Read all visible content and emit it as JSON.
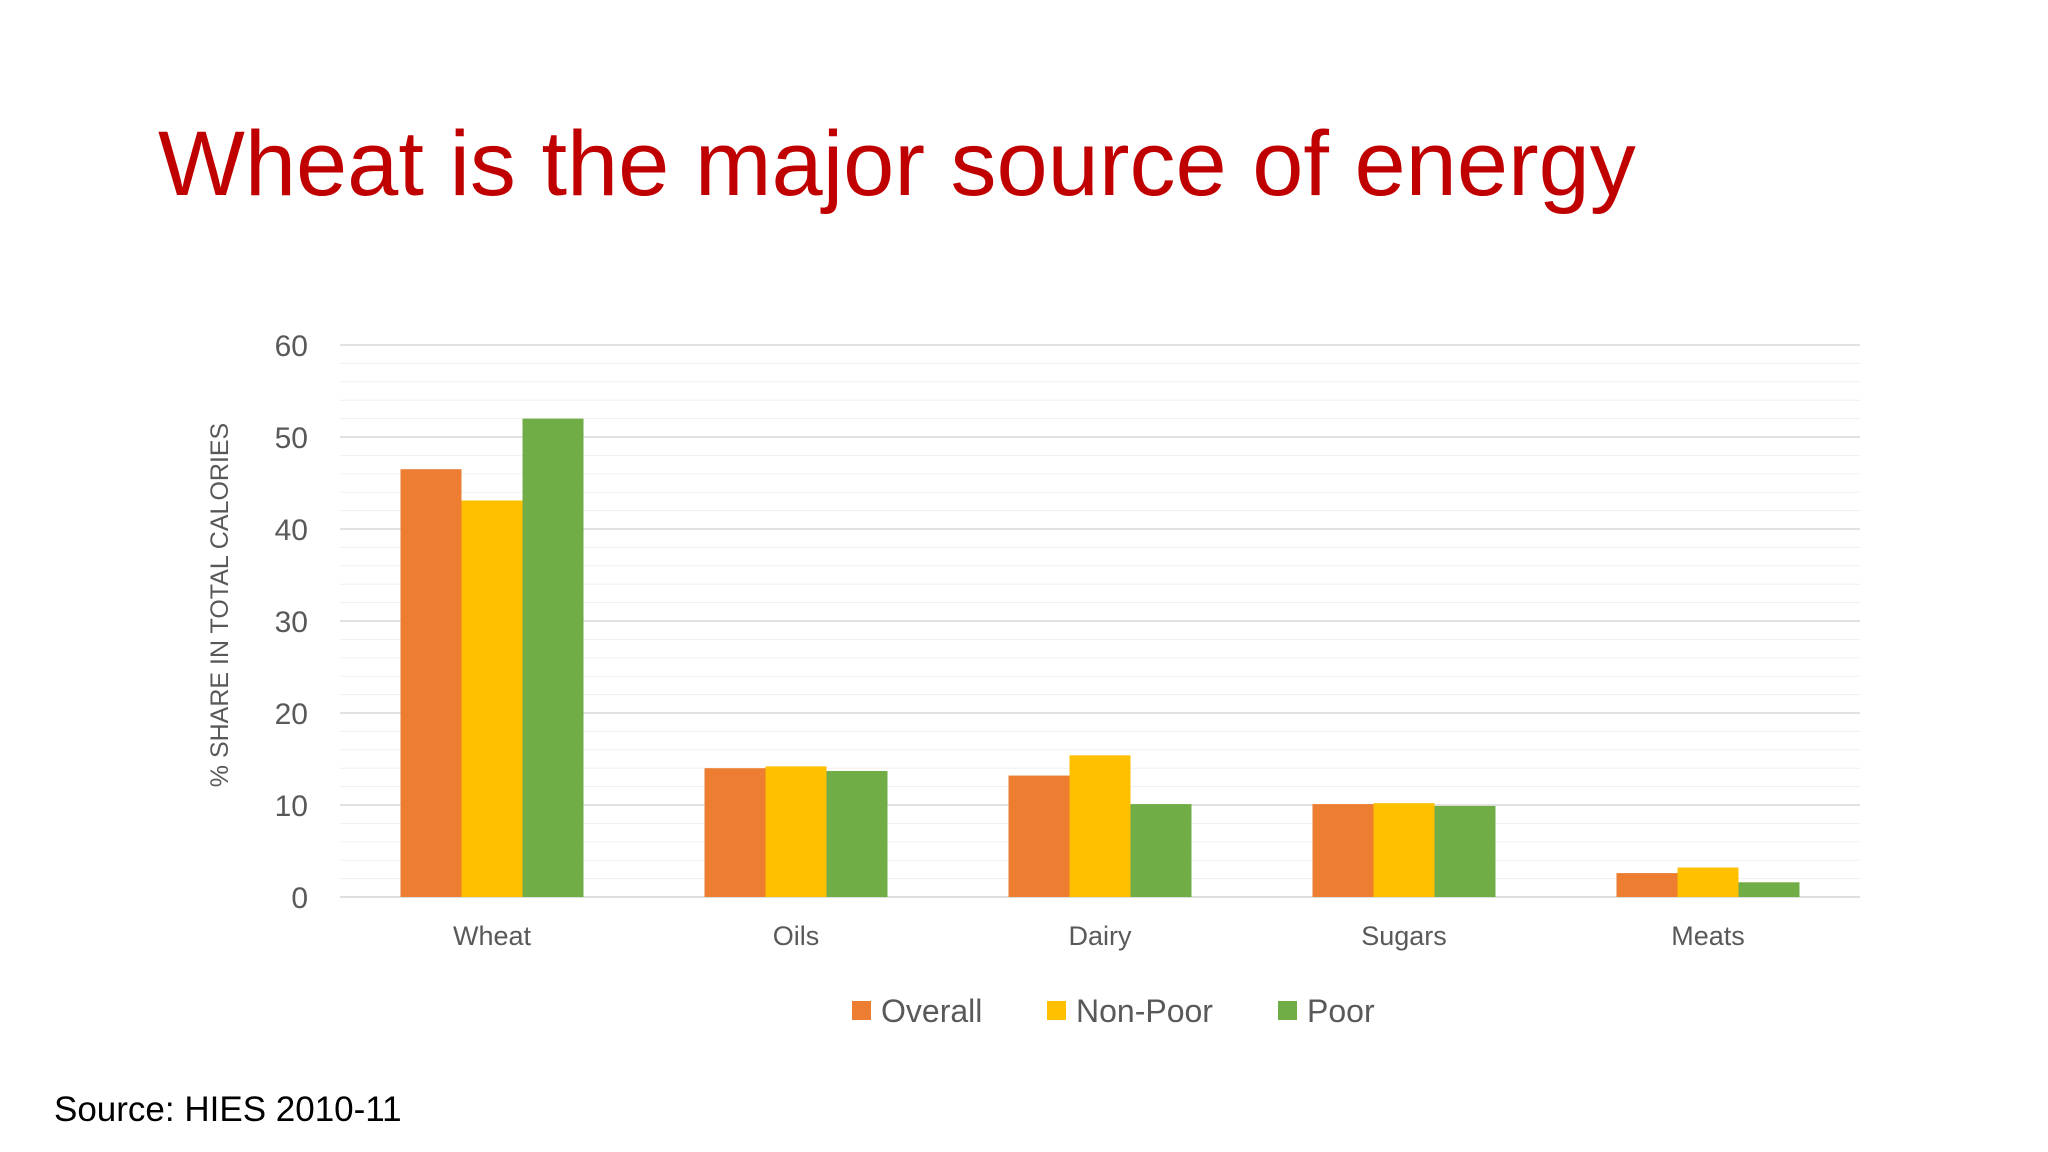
{
  "slide": {
    "title": "Wheat is the major source of energy",
    "source": "Source: HIES 2010-11"
  },
  "chart_data": {
    "type": "bar",
    "categories": [
      "Wheat",
      "Oils",
      "Dairy",
      "Sugars",
      "Meats"
    ],
    "series": [
      {
        "name": "Overall",
        "values": [
          46.5,
          14.0,
          13.2,
          10.1,
          2.6
        ],
        "color": "#ed7d31"
      },
      {
        "name": "Non-Poor",
        "values": [
          43.1,
          14.2,
          15.4,
          10.2,
          3.2
        ],
        "color": "#ffc000"
      },
      {
        "name": "Poor",
        "values": [
          52.0,
          13.7,
          10.1,
          9.9,
          1.6
        ],
        "color": "#70ad47"
      }
    ],
    "title": "",
    "xlabel": "",
    "ylabel": "% SHARE IN TOTAL CALORIES",
    "ylim": [
      0,
      60
    ],
    "yticks": [
      0,
      10,
      20,
      30,
      40,
      50,
      60
    ],
    "grid": true,
    "legend": "bottom"
  }
}
